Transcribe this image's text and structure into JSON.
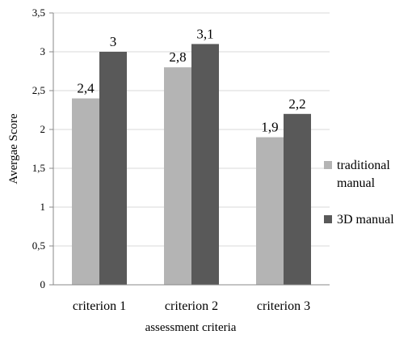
{
  "chart_data": {
    "type": "bar",
    "title": "",
    "xlabel": "assessment criteria",
    "ylabel": "Avergae Score",
    "categories": [
      "criterion 1",
      "criterion 2",
      "criterion 3"
    ],
    "series": [
      {
        "name": "traditional manual",
        "values": [
          2.4,
          2.8,
          1.9
        ],
        "labels": [
          "2,4",
          "2,8",
          "1,9"
        ],
        "color": "#b4b4b4"
      },
      {
        "name": "3D manual",
        "values": [
          3.0,
          3.1,
          2.2
        ],
        "labels": [
          "3",
          "3,1",
          "2,2"
        ],
        "color": "#595959"
      }
    ],
    "ylim": [
      0,
      3.5
    ],
    "yticks": [
      0,
      0.5,
      1,
      1.5,
      2,
      2.5,
      3,
      3.5
    ],
    "ytick_labels": [
      "0",
      "0,5",
      "1",
      "1,5",
      "2",
      "2,5",
      "3",
      "3,5"
    ],
    "grid": true,
    "legend_position": "right",
    "legend_labels": [
      [
        "traditional",
        "manual"
      ],
      [
        "3D manual"
      ]
    ]
  }
}
